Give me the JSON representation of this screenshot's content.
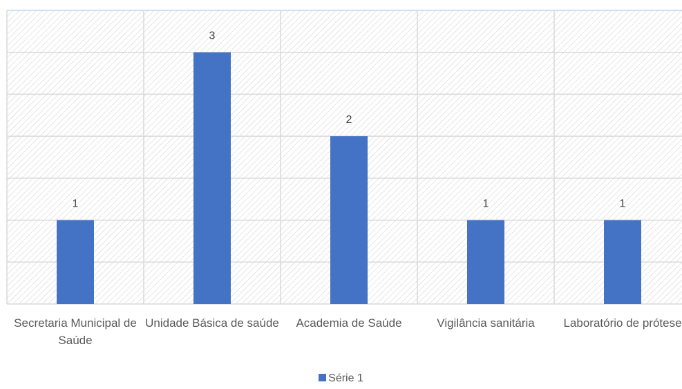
{
  "chart_data": {
    "type": "bar",
    "categories": [
      "Secretaria Municipal de Saúde",
      "Unidade Básica de saúde",
      "Academia de Saúde",
      "Vigilância sanitária",
      "Laboratório de prótese"
    ],
    "series": [
      {
        "name": "Série 1",
        "color": "#4472c4",
        "values": [
          1,
          3,
          2,
          1,
          1
        ]
      }
    ],
    "ylim": [
      0,
      3.5
    ],
    "yticks": [
      0,
      0.5,
      1,
      1.5,
      2,
      2.5,
      3,
      3.5
    ],
    "grid": true,
    "legend": "bottom"
  }
}
